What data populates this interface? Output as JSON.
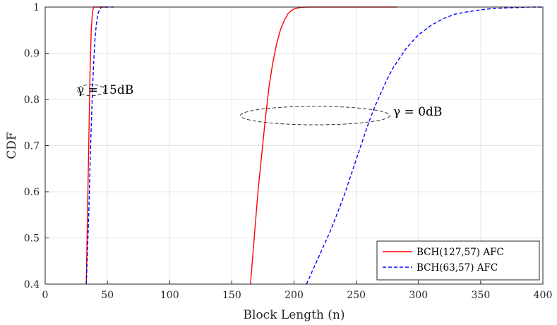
{
  "chart_data": {
    "type": "line",
    "title": "",
    "xlabel": "Block Length (n)",
    "ylabel": "CDF",
    "xlim": [
      0,
      400
    ],
    "ylim": [
      0.4,
      1
    ],
    "xticks": [
      0,
      50,
      100,
      150,
      200,
      250,
      300,
      350,
      400
    ],
    "yticks": [
      0.4,
      0.5,
      0.6,
      0.7,
      0.8,
      0.9,
      1
    ],
    "grid": true,
    "legend_position": "bottom-right",
    "colors": {
      "red": "#ff0000",
      "blue": "#0000ff"
    },
    "series": [
      {
        "name": "BCH(127,57) AFC",
        "color": "#ff0000",
        "style": "solid",
        "x": [
          33,
          34,
          35,
          36,
          37,
          38,
          39,
          40,
          45,
          50
        ],
        "y": [
          0.4,
          0.55,
          0.7,
          0.85,
          0.95,
          0.99,
          1.0,
          1.0,
          1.0,
          1.0
        ]
      },
      {
        "name": "BCH(63,57) AFC",
        "color": "#0000ff",
        "style": "dashed",
        "x": [
          33,
          34,
          35,
          36,
          37,
          38,
          39,
          40,
          41,
          42,
          43,
          45,
          50,
          55
        ],
        "y": [
          0.4,
          0.47,
          0.55,
          0.65,
          0.74,
          0.82,
          0.88,
          0.93,
          0.96,
          0.98,
          0.99,
          1.0,
          1.0,
          1.0
        ]
      },
      {
        "name": "BCH(127,57) AFC",
        "color": "#ff0000",
        "style": "solid",
        "x": [
          165,
          168,
          171,
          174,
          177,
          180,
          183,
          186,
          189,
          192,
          195,
          198,
          201,
          205,
          210,
          220,
          240,
          283
        ],
        "y": [
          0.4,
          0.5,
          0.6,
          0.68,
          0.76,
          0.83,
          0.88,
          0.92,
          0.95,
          0.97,
          0.985,
          0.993,
          0.997,
          0.999,
          1.0,
          1.0,
          1.0,
          1.0
        ]
      },
      {
        "name": "BCH(63,57) AFC",
        "color": "#0000ff",
        "style": "dashed",
        "x": [
          210,
          215,
          220,
          225,
          230,
          235,
          240,
          245,
          250,
          255,
          260,
          265,
          270,
          275,
          280,
          285,
          290,
          295,
          300,
          310,
          320,
          330,
          340,
          350,
          360,
          370,
          380,
          390,
          400
        ],
        "y": [
          0.4,
          0.43,
          0.46,
          0.49,
          0.52,
          0.555,
          0.59,
          0.63,
          0.67,
          0.71,
          0.75,
          0.785,
          0.815,
          0.845,
          0.87,
          0.89,
          0.91,
          0.925,
          0.94,
          0.96,
          0.975,
          0.985,
          0.99,
          0.994,
          0.997,
          0.998,
          0.999,
          1.0,
          1.0
        ]
      }
    ],
    "legend": [
      {
        "label": "BCH(127,57) AFC",
        "color": "#ff0000",
        "style": "solid"
      },
      {
        "label": "BCH(63,57) AFC",
        "color": "#0000ff",
        "style": "dashed"
      }
    ],
    "annotations": [
      {
        "text": "γ = 15dB",
        "ellipse_center": [
          37,
          0.82
        ],
        "ellipse_radii": [
          11,
          0.012
        ]
      },
      {
        "text": "γ = 0dB",
        "ellipse_center": [
          217,
          0.765
        ],
        "ellipse_radii": [
          60,
          0.02
        ]
      }
    ]
  }
}
